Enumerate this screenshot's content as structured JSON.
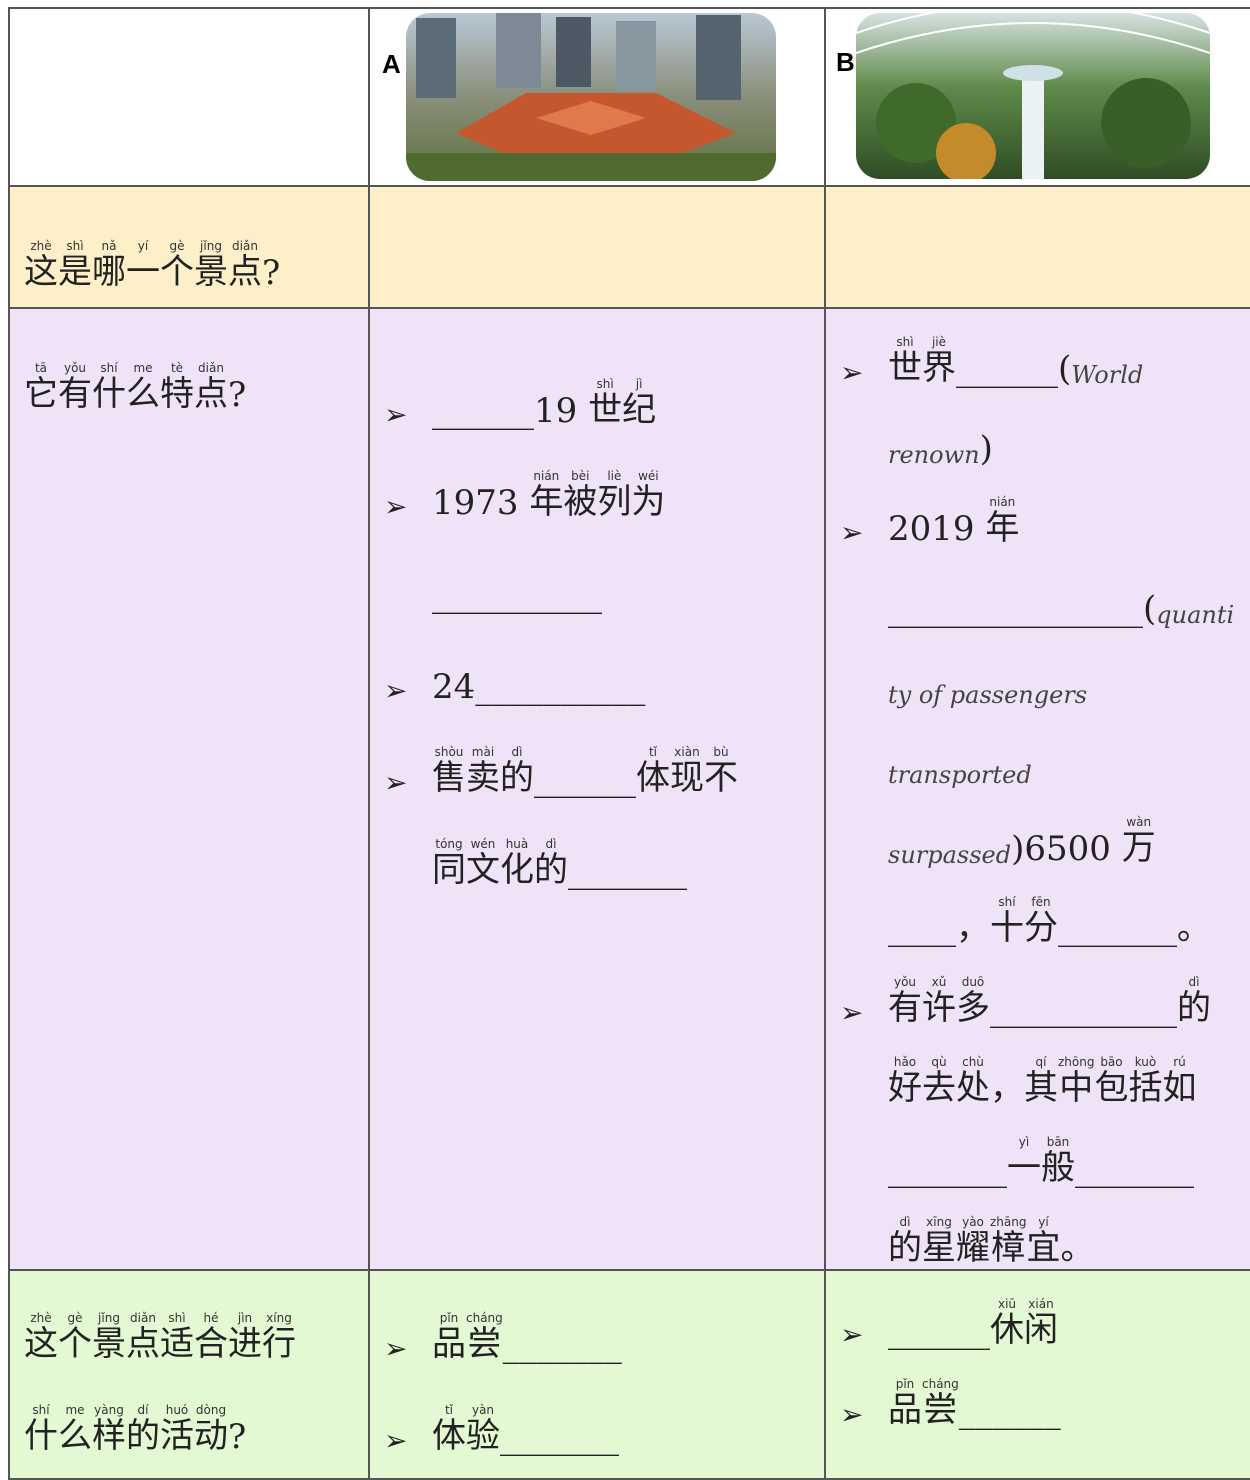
{
  "header": {
    "col_a_label": "A",
    "col_b_label": "B"
  },
  "rows": [
    {
      "question": [
        [
          {
            "h": "这",
            "p": "zhè"
          },
          {
            "h": "是",
            "p": "shì"
          },
          {
            "h": "哪",
            "p": "nǎ"
          },
          {
            "h": "一",
            "p": "yí"
          },
          {
            "h": "个",
            "p": "gè"
          },
          {
            "h": "景",
            "p": "jǐng"
          },
          {
            "h": "点",
            "p": "diǎn"
          },
          "?"
        ]
      ],
      "a": [],
      "b": []
    },
    {
      "question": [
        [
          {
            "h": "它",
            "p": "tā"
          },
          {
            "h": "有",
            "p": "yǒu"
          },
          {
            "h": "什",
            "p": "shí"
          },
          {
            "h": "么",
            "p": "me"
          },
          {
            "h": "特",
            "p": "tè"
          },
          {
            "h": "点",
            "p": "diǎn"
          },
          "?"
        ]
      ],
      "a": [
        [
          [
            "______19 ",
            {
              "h": "世",
              "p": "shì"
            },
            {
              "h": "纪",
              "p": "jì"
            }
          ]
        ],
        [
          [
            "1973 ",
            {
              "h": "年",
              "p": "nián"
            },
            {
              "h": "被",
              "p": "bèi"
            },
            {
              "h": "列",
              "p": "liè"
            },
            {
              "h": "为",
              "p": "wéi"
            }
          ],
          [
            "__________"
          ]
        ],
        [
          [
            "24__________"
          ]
        ],
        [
          [
            {
              "h": "售",
              "p": "shòu"
            },
            {
              "h": "卖",
              "p": "mài"
            },
            {
              "h": "的",
              "p": "dì"
            },
            "______",
            {
              "h": "体",
              "p": "tǐ"
            },
            {
              "h": "现",
              "p": "xiàn"
            },
            {
              "h": "不",
              "p": "bù"
            }
          ],
          [
            {
              "h": "同",
              "p": "tóng"
            },
            {
              "h": "文",
              "p": "wén"
            },
            {
              "h": "化",
              "p": "huà"
            },
            {
              "h": "的",
              "p": "dì"
            },
            "_______"
          ]
        ]
      ],
      "b": [
        [
          [
            {
              "h": "世",
              "p": "shì"
            },
            {
              "h": "界",
              "p": "jiè"
            },
            "______(",
            {
              "em": "World"
            }
          ],
          [
            {
              "em": "renown"
            },
            ")"
          ]
        ],
        [
          [
            "2019 ",
            {
              "h": "年",
              "p": "nián"
            }
          ],
          [
            "_______________(",
            {
              "em": "quanti"
            }
          ],
          [
            {
              "em": "ty of passengers"
            }
          ],
          [
            {
              "em": "transported"
            }
          ],
          [
            {
              "em": "surpassed"
            },
            ")6500 ",
            {
              "h": "万",
              "p": "wàn"
            }
          ],
          [
            "____，",
            {
              "h": "十",
              "p": "shí"
            },
            {
              "h": "分",
              "p": "fēn"
            },
            "_______。"
          ]
        ],
        [
          [
            {
              "h": "有",
              "p": "yǒu"
            },
            {
              "h": "许",
              "p": "xǔ"
            },
            {
              "h": "多",
              "p": "duō"
            },
            "___________",
            {
              "h": "的",
              "p": "dì"
            }
          ],
          [
            {
              "h": "好",
              "p": "hǎo"
            },
            {
              "h": "去",
              "p": "qù"
            },
            {
              "h": "处",
              "p": "chù"
            },
            "，",
            {
              "h": "其",
              "p": "qí"
            },
            {
              "h": "中",
              "p": "zhōng"
            },
            {
              "h": "包",
              "p": "bāo"
            },
            {
              "h": "括",
              "p": "kuò"
            },
            {
              "h": "如",
              "p": "rú"
            }
          ],
          [
            "_______",
            {
              "h": "一",
              "p": "yì"
            },
            {
              "h": "般",
              "p": "bān"
            },
            "_______"
          ],
          [
            {
              "h": "的",
              "p": "dì"
            },
            {
              "h": "星",
              "p": "xīng"
            },
            {
              "h": "耀",
              "p": "yào"
            },
            {
              "h": "樟",
              "p": "zhāng"
            },
            {
              "h": "宜",
              "p": "yí"
            },
            "。"
          ]
        ]
      ]
    },
    {
      "question": [
        [
          {
            "h": "这",
            "p": "zhè"
          },
          {
            "h": "个",
            "p": "gè"
          },
          {
            "h": "景",
            "p": "jǐng"
          },
          {
            "h": "点",
            "p": "diǎn"
          },
          {
            "h": "适",
            "p": "shì"
          },
          {
            "h": "合",
            "p": "hé"
          },
          {
            "h": "进",
            "p": "jìn"
          },
          {
            "h": "行",
            "p": "xíng"
          }
        ],
        [
          {
            "h": "什",
            "p": "shí"
          },
          {
            "h": "么",
            "p": "me"
          },
          {
            "h": "样",
            "p": "yàng"
          },
          {
            "h": "的",
            "p": "dí"
          },
          {
            "h": "活",
            "p": "huó"
          },
          {
            "h": "动",
            "p": "dòng"
          },
          "?"
        ]
      ],
      "a": [
        [
          [
            {
              "h": "品",
              "p": "pǐn"
            },
            {
              "h": "尝",
              "p": "cháng"
            },
            "_______"
          ]
        ],
        [
          [
            {
              "h": "体",
              "p": "tǐ"
            },
            {
              "h": "验",
              "p": "yàn"
            },
            "_______"
          ]
        ]
      ],
      "b": [
        [
          [
            "______",
            {
              "h": "休",
              "p": "xiū"
            },
            {
              "h": "闲",
              "p": "xián"
            }
          ]
        ],
        [
          [
            {
              "h": "品",
              "p": "pǐn"
            },
            {
              "h": "尝",
              "p": "cháng"
            },
            "______"
          ]
        ]
      ]
    }
  ]
}
